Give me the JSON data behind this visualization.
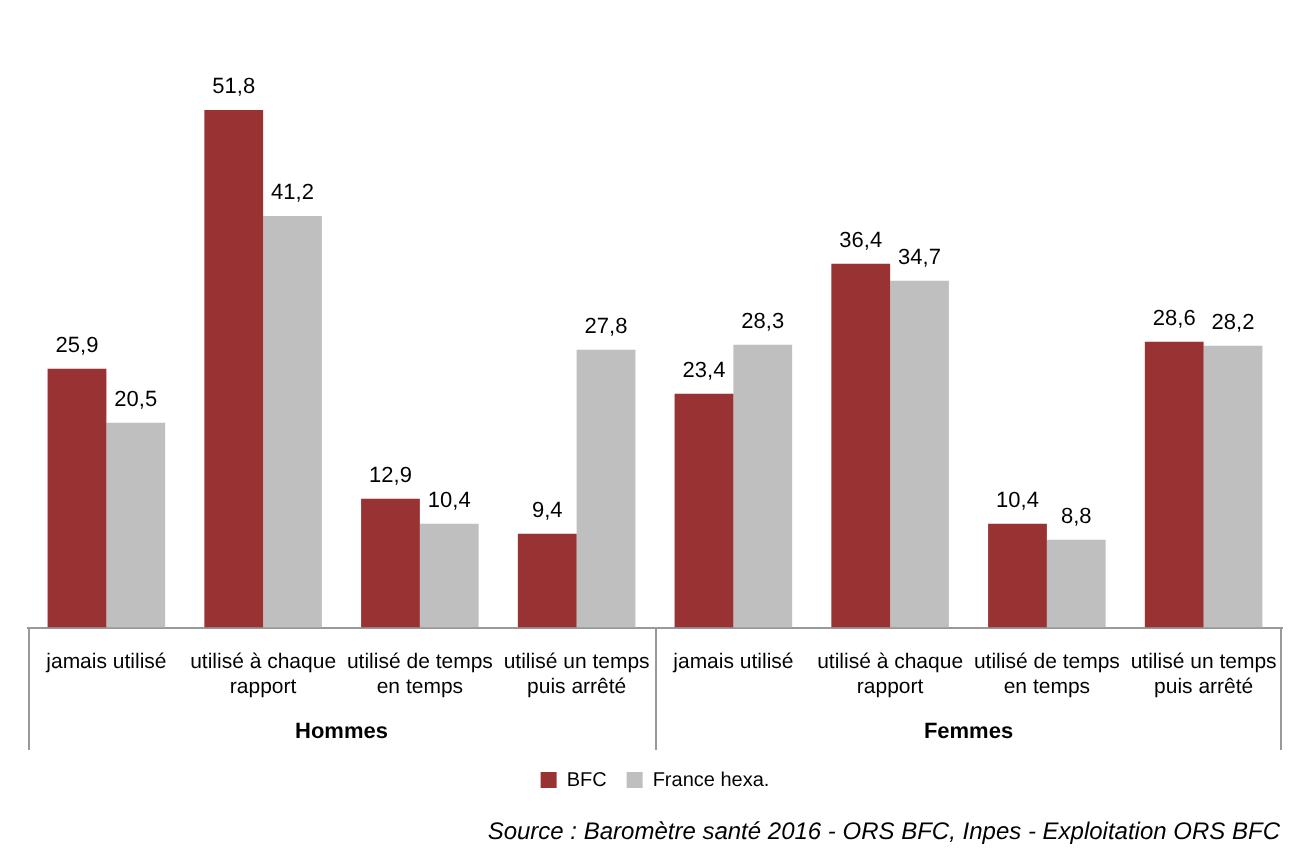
{
  "chart_data": {
    "type": "bar",
    "categories": [
      "jamais utilisé",
      "utilisé à chaque rapport",
      "utilisé de temps en temps",
      "utilisé un temps puis arrêté",
      "jamais utilisé",
      "utilisé à chaque rapport",
      "utilisé de temps en temps",
      "utilisé un temps puis arrêté"
    ],
    "series": [
      {
        "name": "BFC",
        "color": "#993333",
        "values": [
          25.9,
          51.8,
          12.9,
          9.4,
          23.4,
          36.4,
          10.4,
          28.6
        ],
        "value_labels": [
          "25,9",
          "51,8",
          "12,9",
          "9,4",
          "23,4",
          "36,4",
          "10,4",
          "28,6"
        ]
      },
      {
        "name": "France hexa.",
        "color": "#bfbfbf",
        "values": [
          20.5,
          41.2,
          10.4,
          27.8,
          28.3,
          34.7,
          8.8,
          28.2
        ],
        "value_labels": [
          "20,5",
          "41,2",
          "10,4",
          "27,8",
          "28,3",
          "34,7",
          "8,8",
          "28,2"
        ]
      }
    ],
    "grid": false,
    "legend": "bottom",
    "annotations": [
      "Hommes",
      "Femmes",
      "Source : Baromètre santé 2016 - ORS BFC, Inpes - Exploitation ORS BFC"
    ]
  }
}
